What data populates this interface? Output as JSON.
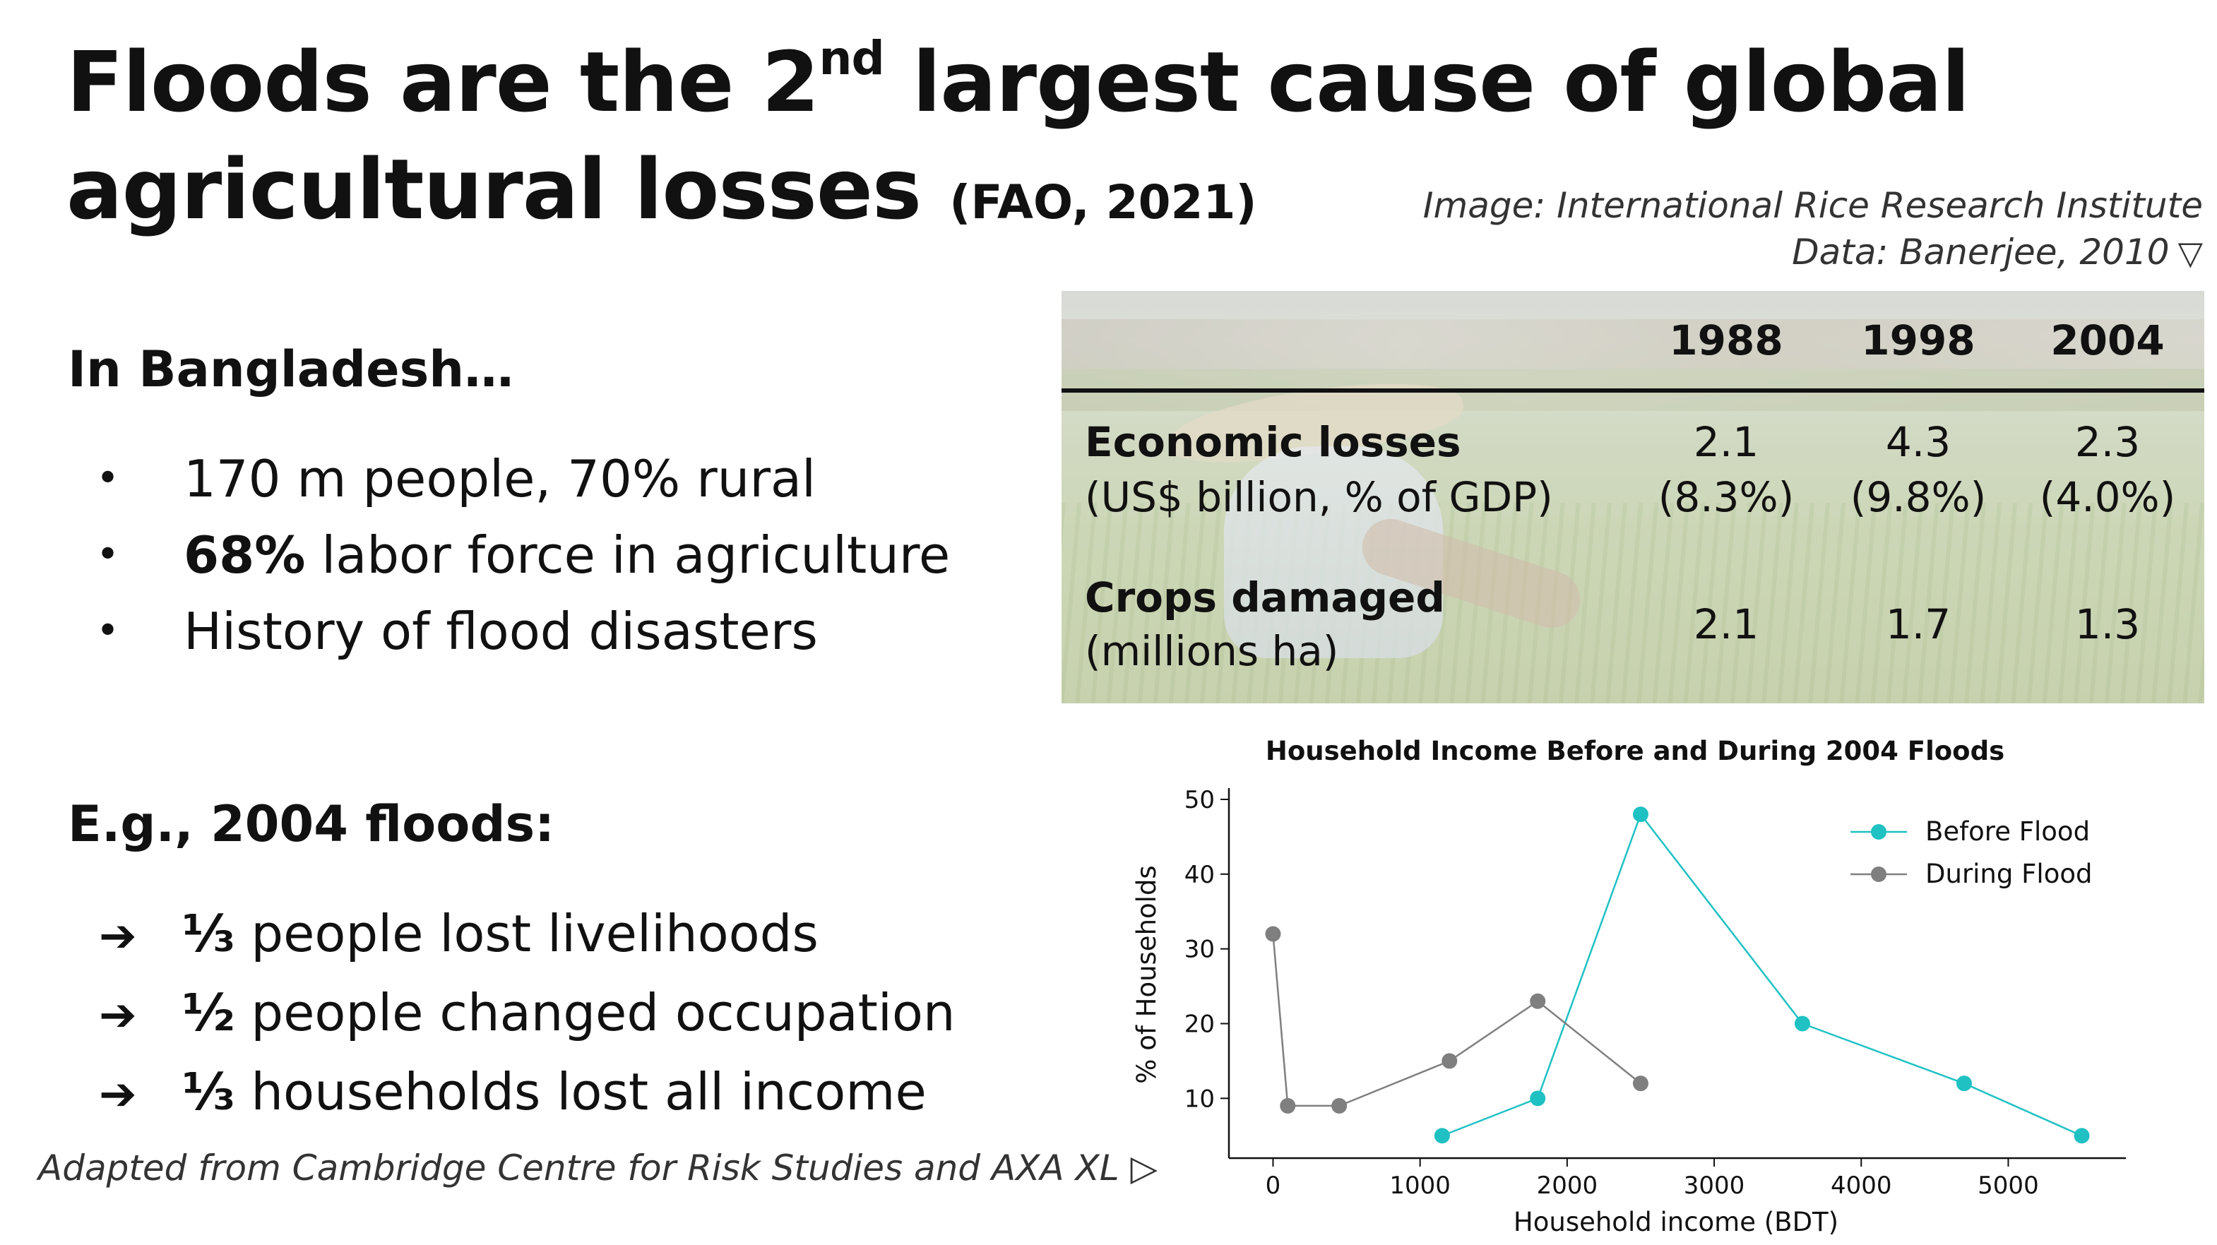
{
  "title": {
    "line1_pre": "Floods are the 2",
    "line1_sup": "nd",
    "line1_post": " largest cause of global",
    "line2": "agricultural losses",
    "citation": "(FAO, 2021)"
  },
  "credits": {
    "image": "Image: International Rice Research Institute",
    "data": "Data:  Banerjee, 2010",
    "data_icon": "triangle-down-icon"
  },
  "left": {
    "heading1": "In Bangladesh…",
    "bullets": [
      {
        "bold": "",
        "text": "170 m people, 70% rural"
      },
      {
        "bold": "68%",
        "text": " labor force in agriculture"
      },
      {
        "bold": "",
        "text": "History of flood disasters"
      }
    ],
    "heading2": "E.g., 2004 floods:",
    "arrow_items": [
      {
        "arrow": "➔",
        "frac": "⅓",
        "text": " people lost livelihoods"
      },
      {
        "arrow": "➔",
        "frac": "½",
        "text": " people changed occupation"
      },
      {
        "arrow": "➔",
        "frac": "⅓",
        "text": " households lost all income"
      }
    ]
  },
  "footer": {
    "text": "Adapted from Cambridge Centre for Risk Studies and AXA XL",
    "icon": "triangle-right-icon",
    "glyph": "▷"
  },
  "table": {
    "years": [
      "1988",
      "1998",
      "2004"
    ],
    "rows": [
      {
        "label": "Economic losses",
        "sublabel": "(US$ billion, % of GDP)",
        "values": [
          "2.1",
          "4.3",
          "2.3"
        ],
        "subvalues": [
          "(8.3%)",
          "(9.8%)",
          "(4.0%)"
        ]
      },
      {
        "label": "Crops damaged",
        "sublabel": "(millions ha)",
        "values": [
          "2.1",
          "1.7",
          "1.3"
        ]
      }
    ]
  },
  "chart_data": {
    "type": "line",
    "title": "Household Income Before and During 2004 Floods",
    "xlabel": "Household income (BDT)",
    "ylabel": "% of Households",
    "xlim": [
      -300,
      5800
    ],
    "ylim": [
      2,
      50
    ],
    "xticks": [
      0,
      1000,
      2000,
      3000,
      4000,
      5000
    ],
    "yticks": [
      10,
      20,
      30,
      40,
      50
    ],
    "grid": false,
    "legend_position": "top-right",
    "series": [
      {
        "name": "Before Flood",
        "color": "#1fc1c3",
        "points": [
          [
            1150,
            5
          ],
          [
            1800,
            10
          ],
          [
            2500,
            48
          ],
          [
            3600,
            20
          ],
          [
            4700,
            12
          ],
          [
            5500,
            5
          ]
        ]
      },
      {
        "name": "During Flood",
        "color": "#7f7f7f",
        "points": [
          [
            0,
            32
          ],
          [
            100,
            9
          ],
          [
            450,
            9
          ],
          [
            1200,
            15
          ],
          [
            1800,
            23
          ],
          [
            2500,
            12
          ]
        ]
      }
    ]
  }
}
